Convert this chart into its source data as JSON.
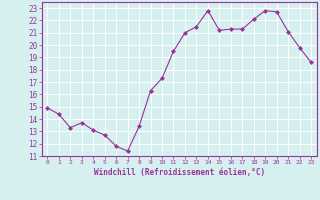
{
  "x": [
    0,
    1,
    2,
    3,
    4,
    5,
    6,
    7,
    8,
    9,
    10,
    11,
    12,
    13,
    14,
    15,
    16,
    17,
    18,
    19,
    20,
    21,
    22,
    23
  ],
  "y": [
    14.9,
    14.4,
    13.3,
    13.7,
    13.1,
    12.7,
    11.8,
    11.4,
    13.4,
    16.3,
    17.3,
    19.5,
    21.0,
    21.5,
    22.8,
    21.2,
    21.3,
    21.3,
    22.1,
    22.8,
    22.7,
    21.1,
    19.8,
    18.6
  ],
  "line_color": "#993399",
  "marker": "D",
  "marker_size": 2,
  "bg_color": "#d6f0f0",
  "grid_color": "#ffffff",
  "xlabel": "Windchill (Refroidissement éolien,°C)",
  "ylabel_ticks": [
    11,
    12,
    13,
    14,
    15,
    16,
    17,
    18,
    19,
    20,
    21,
    22,
    23
  ],
  "xlim": [
    -0.5,
    23.5
  ],
  "ylim": [
    11,
    23.5
  ],
  "tick_color": "#993399",
  "label_color": "#993399",
  "font_family": "monospace"
}
